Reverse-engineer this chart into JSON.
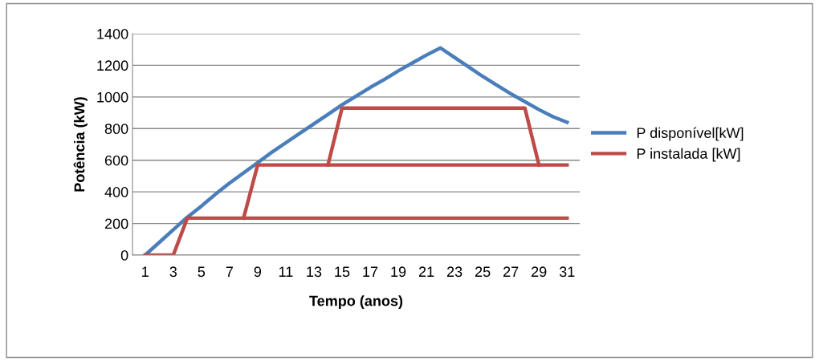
{
  "chart_data": {
    "type": "line",
    "xlabel": "Tempo (anos)",
    "ylabel": "Potência (kW)",
    "categories": [
      "1",
      null,
      "3",
      null,
      "5",
      null,
      "7",
      null,
      "9",
      null,
      "11",
      null,
      "13",
      null,
      "15",
      null,
      "17",
      null,
      "19",
      null,
      "21",
      null,
      "23",
      null,
      "25",
      null,
      "27",
      null,
      "29",
      null,
      "31"
    ],
    "series": [
      {
        "name": "P disponível[kW]",
        "color": "#4a7ebb",
        "values": [
          0,
          80,
          160,
          240,
          310,
          385,
          455,
          520,
          585,
          650,
          710,
          770,
          830,
          890,
          950,
          1005,
          1060,
          1110,
          1165,
          1215,
          1265,
          1310,
          1250,
          1190,
          1130,
          1075,
          1020,
          970,
          920,
          875,
          840
        ]
      },
      {
        "name": "P instalada [kW]",
        "color": "#be4b48",
        "values": [
          0,
          0,
          0,
          234,
          234,
          234,
          234,
          234,
          234,
          234,
          234,
          234,
          234,
          234,
          234,
          234,
          234,
          234,
          234,
          234,
          234,
          234,
          234,
          234,
          234,
          234,
          234,
          234,
          234,
          234,
          234
        ]
      },
      {
        "color": "#be4b48",
        "values": [
          null,
          null,
          null,
          null,
          null,
          null,
          null,
          234,
          570,
          570,
          570,
          570,
          570,
          570,
          570,
          570,
          570,
          570,
          570,
          570,
          570,
          570,
          570,
          570,
          570,
          570,
          570,
          570,
          570,
          570,
          570
        ]
      },
      {
        "color": "#be4b48",
        "values": [
          null,
          null,
          null,
          null,
          null,
          null,
          null,
          null,
          null,
          null,
          null,
          null,
          null,
          570,
          930,
          930,
          930,
          930,
          930,
          930,
          930,
          930,
          930,
          930,
          930,
          930,
          930,
          930,
          570,
          null,
          null
        ]
      }
    ],
    "ylim": [
      0,
      1400
    ],
    "yticks": [
      0,
      200,
      400,
      600,
      800,
      1000,
      1200,
      1400
    ],
    "grid": "y",
    "legend": "right",
    "marker": "none",
    "line_style": "solid"
  }
}
